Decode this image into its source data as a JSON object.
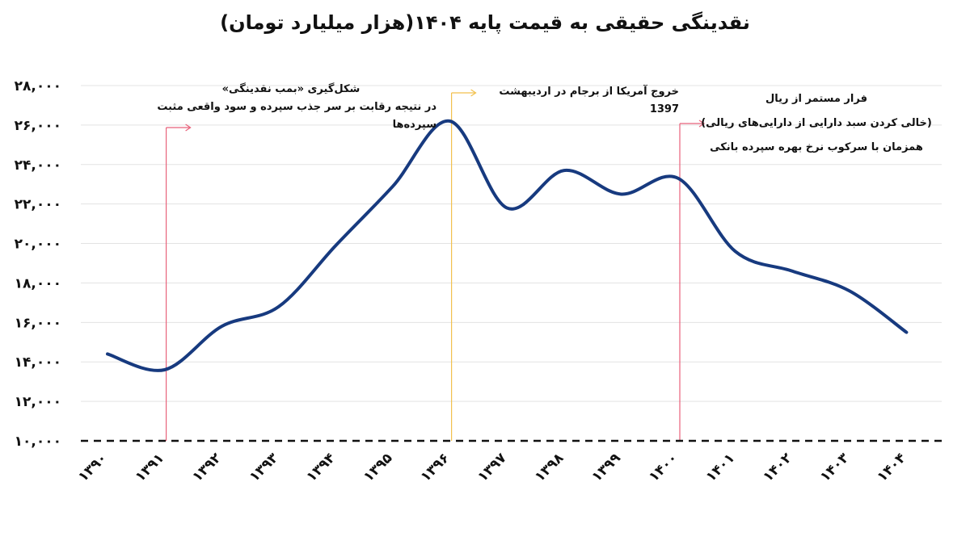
{
  "title": "نقدینگی حقیقی به قیمت پایه ۱۴۰۴(هزار میلیارد تومان)",
  "chart_data": {
    "type": "line",
    "title": "نقدینگی حقیقی به قیمت پایه ۱۴۰۴(هزار میلیارد تومان)",
    "xlabel": "",
    "ylabel": "",
    "ylim": [
      10000,
      28000
    ],
    "grid": true,
    "x": [
      "۱۳۹۰",
      "۱۳۹۱",
      "۱۳۹۲",
      "۱۳۹۳",
      "۱۳۹۴",
      "۱۳۹۵",
      "۱۳۹۶",
      "۱۳۹۷",
      "۱۳۹۸",
      "۱۳۹۹",
      "۱۴۰۰",
      "۱۴۰۱",
      "۱۴۰۲",
      "۱۴۰۳",
      "۱۴۰۴"
    ],
    "y_tick_labels": [
      "۱۰,۰۰۰",
      "۱۲,۰۰۰",
      "۱۴,۰۰۰",
      "۱۶,۰۰۰",
      "۱۸,۰۰۰",
      "۲۰,۰۰۰",
      "۲۲,۰۰۰",
      "۲۴,۰۰۰",
      "۲۶,۰۰۰",
      "۲۸,۰۰۰"
    ],
    "y_ticks": [
      10000,
      12000,
      14000,
      16000,
      18000,
      20000,
      22000,
      24000,
      26000,
      28000
    ],
    "series": [
      {
        "name": "",
        "color": "#173a7f",
        "values": [
          14400,
          13600,
          15800,
          16800,
          19900,
          22900,
          26200,
          21800,
          23700,
          22500,
          23300,
          19600,
          18600,
          17600,
          15500
        ]
      }
    ],
    "annotations": [
      {
        "x": "۱۳۹۱",
        "color": "#e8627b",
        "lines": [
          "شکل‌گیری «بمب نقدینگی»",
          "در نتیجه رقابت بر سر جذب سپرده و سود واقعی مثبت سپرده‌ها"
        ]
      },
      {
        "x": "۱۳۹۶",
        "color": "#f2c14e",
        "lines": [
          "خروج آمریکا از برجام در اردیبهشت 1397"
        ]
      },
      {
        "x": "۱۴۰۰",
        "color": "#e8627b",
        "lines": [
          "فرار مستمر از ریال",
          "(خالی کردن سبد دارایی از دارایی‌های ریالی)",
          "همزمان با سرکوب نرخ بهره سپرده بانکی"
        ]
      }
    ]
  }
}
